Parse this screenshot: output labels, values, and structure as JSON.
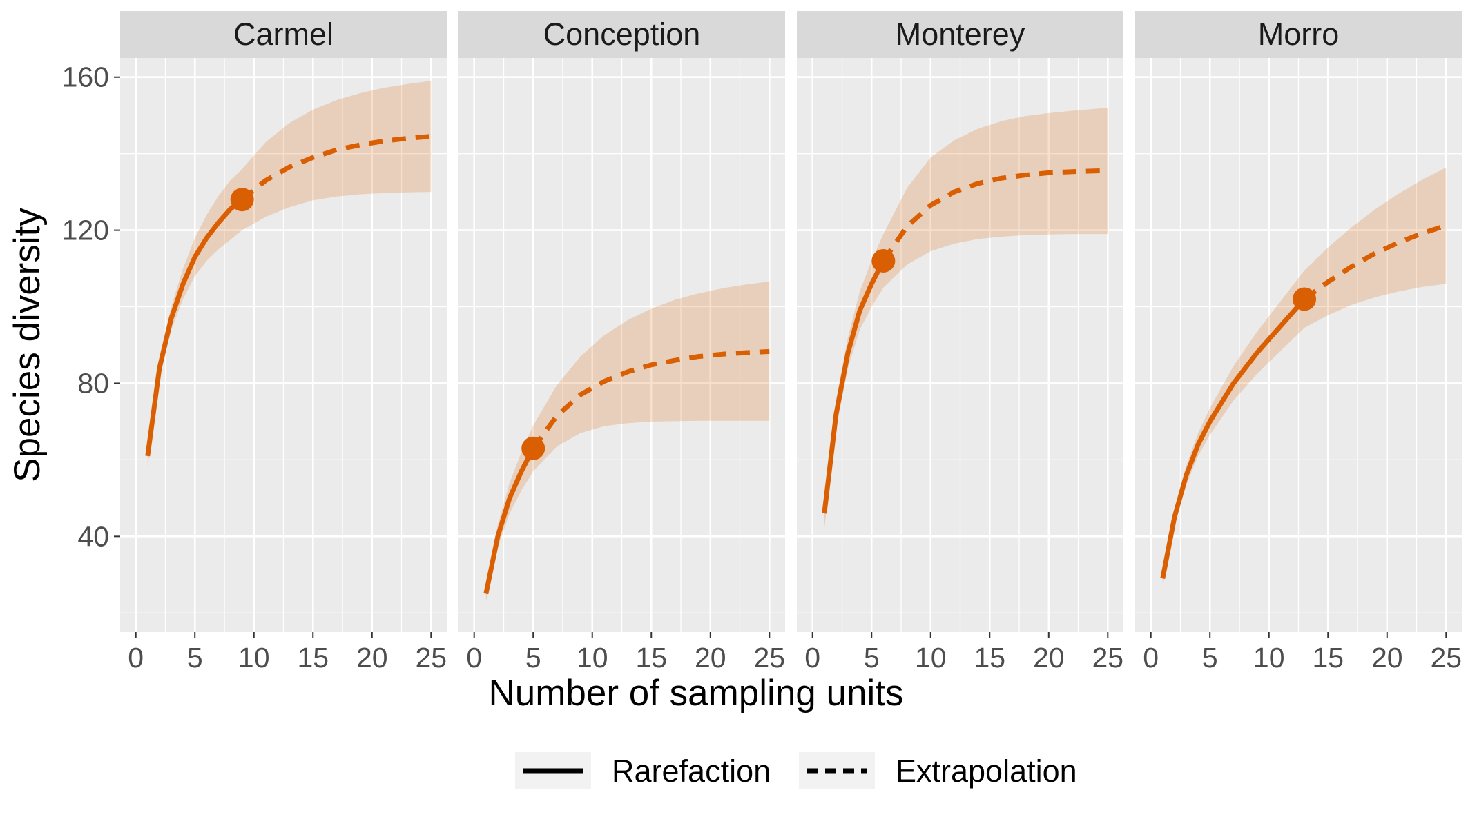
{
  "chart_data": {
    "type": "line",
    "xlabel": "Number of sampling units",
    "ylabel": "Species diversity",
    "xlim": [
      0,
      25
    ],
    "ylim": [
      15,
      165
    ],
    "x_ticks": [
      0,
      5,
      10,
      15,
      20,
      25
    ],
    "y_ticks": [
      40,
      80,
      120,
      160
    ],
    "grid": true,
    "legend_position": "bottom",
    "colors": {
      "line": "#d95f02",
      "ribbon": "#d95f02",
      "panel_bg": "#ebebeb",
      "strip_bg": "#d9d9d9",
      "grid": "#ffffff"
    },
    "legend": [
      {
        "label": "Rarefaction",
        "style": "solid"
      },
      {
        "label": "Extrapolation",
        "style": "dashed"
      }
    ],
    "panels": [
      {
        "name": "Carmel",
        "observed": {
          "x": 9,
          "y": 128
        },
        "rarefaction": {
          "x": [
            1,
            2,
            3,
            4,
            5,
            6,
            7,
            8,
            9
          ],
          "y": [
            61,
            84,
            97,
            106,
            113,
            118,
            122,
            125.5,
            128
          ],
          "lower": [
            58,
            81,
            94,
            102,
            108,
            112,
            115,
            117.5,
            120
          ],
          "upper": [
            64,
            87,
            100,
            110,
            118,
            124,
            129,
            133,
            136
          ]
        },
        "extrapolation": {
          "x": [
            9,
            11,
            13,
            15,
            17,
            19,
            21,
            23,
            25
          ],
          "y": [
            128,
            133,
            136.5,
            139,
            141,
            142.3,
            143.3,
            144,
            144.5
          ],
          "lower": [
            120,
            123.5,
            126,
            127.8,
            128.8,
            129.4,
            129.7,
            129.9,
            130
          ],
          "upper": [
            136,
            143,
            148,
            151.5,
            154,
            155.8,
            157.2,
            158.2,
            159
          ]
        }
      },
      {
        "name": "Conception",
        "observed": {
          "x": 5,
          "y": 63
        },
        "rarefaction": {
          "x": [
            1,
            2,
            3,
            4,
            5
          ],
          "y": [
            25,
            40,
            50,
            57,
            63
          ],
          "lower": [
            23,
            37,
            46,
            52,
            57
          ],
          "upper": [
            27,
            43,
            54,
            62,
            69
          ]
        },
        "extrapolation": {
          "x": [
            5,
            7,
            9,
            11,
            13,
            15,
            17,
            19,
            21,
            23,
            25
          ],
          "y": [
            63,
            71.5,
            77,
            80.5,
            83,
            84.8,
            86,
            87,
            87.6,
            88,
            88.3
          ],
          "lower": [
            57,
            63.5,
            67,
            68.8,
            69.6,
            70,
            70.1,
            70.2,
            70.2,
            70.2,
            70.2
          ],
          "upper": [
            69,
            79.5,
            87,
            92.5,
            96.5,
            99.5,
            101.8,
            103.5,
            104.8,
            105.8,
            106.6
          ]
        }
      },
      {
        "name": "Monterey",
        "observed": {
          "x": 6,
          "y": 112
        },
        "rarefaction": {
          "x": [
            1,
            2,
            3,
            4,
            5,
            6
          ],
          "y": [
            46,
            72,
            88,
            99,
            106,
            112
          ],
          "lower": [
            42,
            68,
            84,
            94,
            100,
            105
          ],
          "upper": [
            50,
            76,
            92,
            104,
            112,
            119
          ]
        },
        "extrapolation": {
          "x": [
            6,
            8,
            10,
            12,
            14,
            16,
            18,
            20,
            22,
            25
          ],
          "y": [
            112,
            121,
            126.5,
            130,
            132.2,
            133.6,
            134.4,
            135,
            135.3,
            135.6
          ],
          "lower": [
            105,
            111,
            114.5,
            116.5,
            117.7,
            118.3,
            118.7,
            118.9,
            119,
            119
          ],
          "upper": [
            119,
            131,
            139,
            143.5,
            146.5,
            148.5,
            149.8,
            150.6,
            151.2,
            152
          ]
        }
      },
      {
        "name": "Morro",
        "observed": {
          "x": 13,
          "y": 102
        },
        "rarefaction": {
          "x": [
            1,
            2,
            3,
            4,
            5,
            6,
            7,
            8,
            9,
            10,
            11,
            12,
            13
          ],
          "y": [
            29,
            45,
            56,
            64,
            70,
            75,
            80,
            84,
            88,
            91.5,
            95,
            98.5,
            102
          ],
          "lower": [
            27,
            43,
            53.5,
            61,
            66.5,
            71,
            75.5,
            79,
            82.5,
            85.5,
            88.5,
            91.5,
            94.5
          ],
          "upper": [
            31,
            47,
            58.5,
            67,
            73.5,
            79,
            84.5,
            89,
            93.5,
            97.5,
            101.5,
            105.5,
            109.5
          ]
        },
        "extrapolation": {
          "x": [
            13,
            15,
            17,
            19,
            21,
            23,
            25
          ],
          "y": [
            102,
            106.5,
            110.5,
            114,
            116.8,
            119.2,
            121.2
          ],
          "lower": [
            94.5,
            97.8,
            100.5,
            102.5,
            104,
            105.2,
            106
          ],
          "upper": [
            109.5,
            115.5,
            120.8,
            125.5,
            129.6,
            133.2,
            136.4
          ]
        }
      }
    ]
  }
}
